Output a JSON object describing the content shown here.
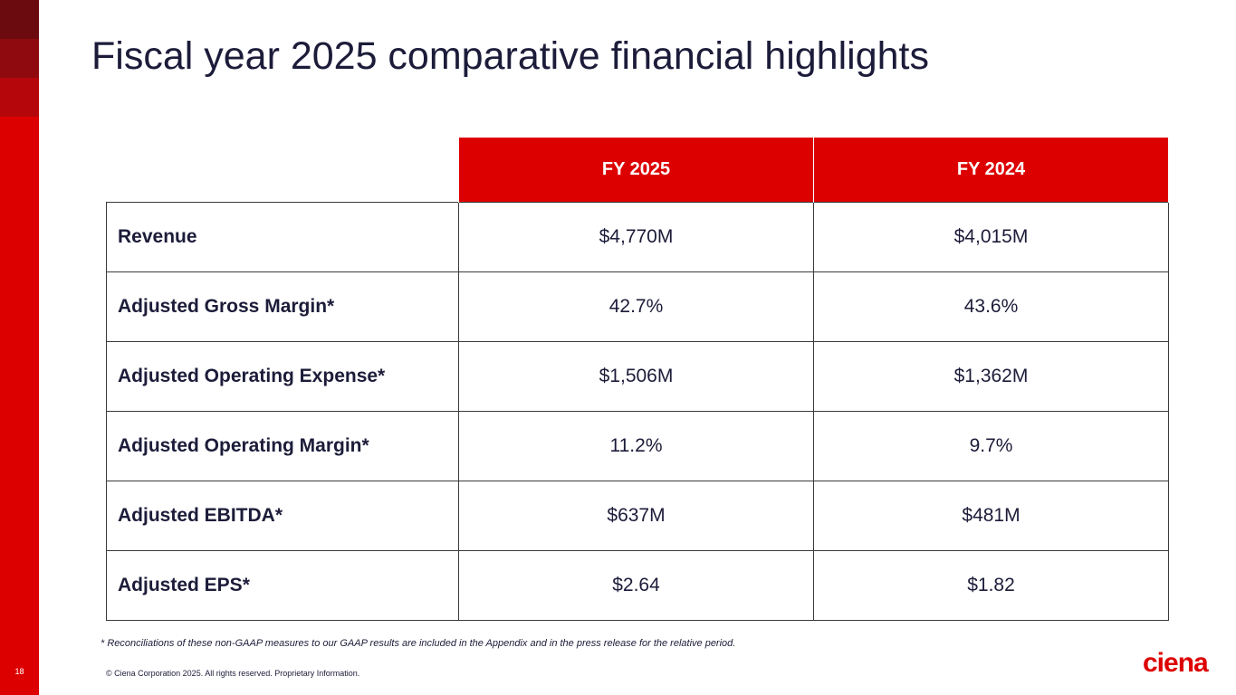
{
  "slide": {
    "page_number": "18",
    "title": "Fiscal year 2025 comparative financial highlights",
    "footnote": "* Reconciliations of these non-GAAP measures to our GAAP results are included in the Appendix and in the press release for the relative period.",
    "copyright": "© Ciena Corporation 2025. All rights reserved. Proprietary Information.",
    "logo_text": "ciena",
    "colors": {
      "brand_red": "#dd0000",
      "text_navy": "#1c1c3a"
    }
  },
  "table": {
    "headers": [
      "FY 2025",
      "FY 2024"
    ],
    "rows": [
      {
        "label": "Revenue",
        "fy2025": "$4,770M",
        "fy2024": "$4,015M"
      },
      {
        "label": "Adjusted Gross Margin*",
        "fy2025": "42.7%",
        "fy2024": "43.6%"
      },
      {
        "label": "Adjusted Operating Expense*",
        "fy2025": "$1,506M",
        "fy2024": "$1,362M"
      },
      {
        "label": "Adjusted Operating Margin*",
        "fy2025": "11.2%",
        "fy2024": "9.7%"
      },
      {
        "label": "Adjusted EBITDA*",
        "fy2025": "$637M",
        "fy2024": "$481M"
      },
      {
        "label": "Adjusted EPS*",
        "fy2025": "$2.64",
        "fy2024": "$1.82"
      }
    ]
  }
}
